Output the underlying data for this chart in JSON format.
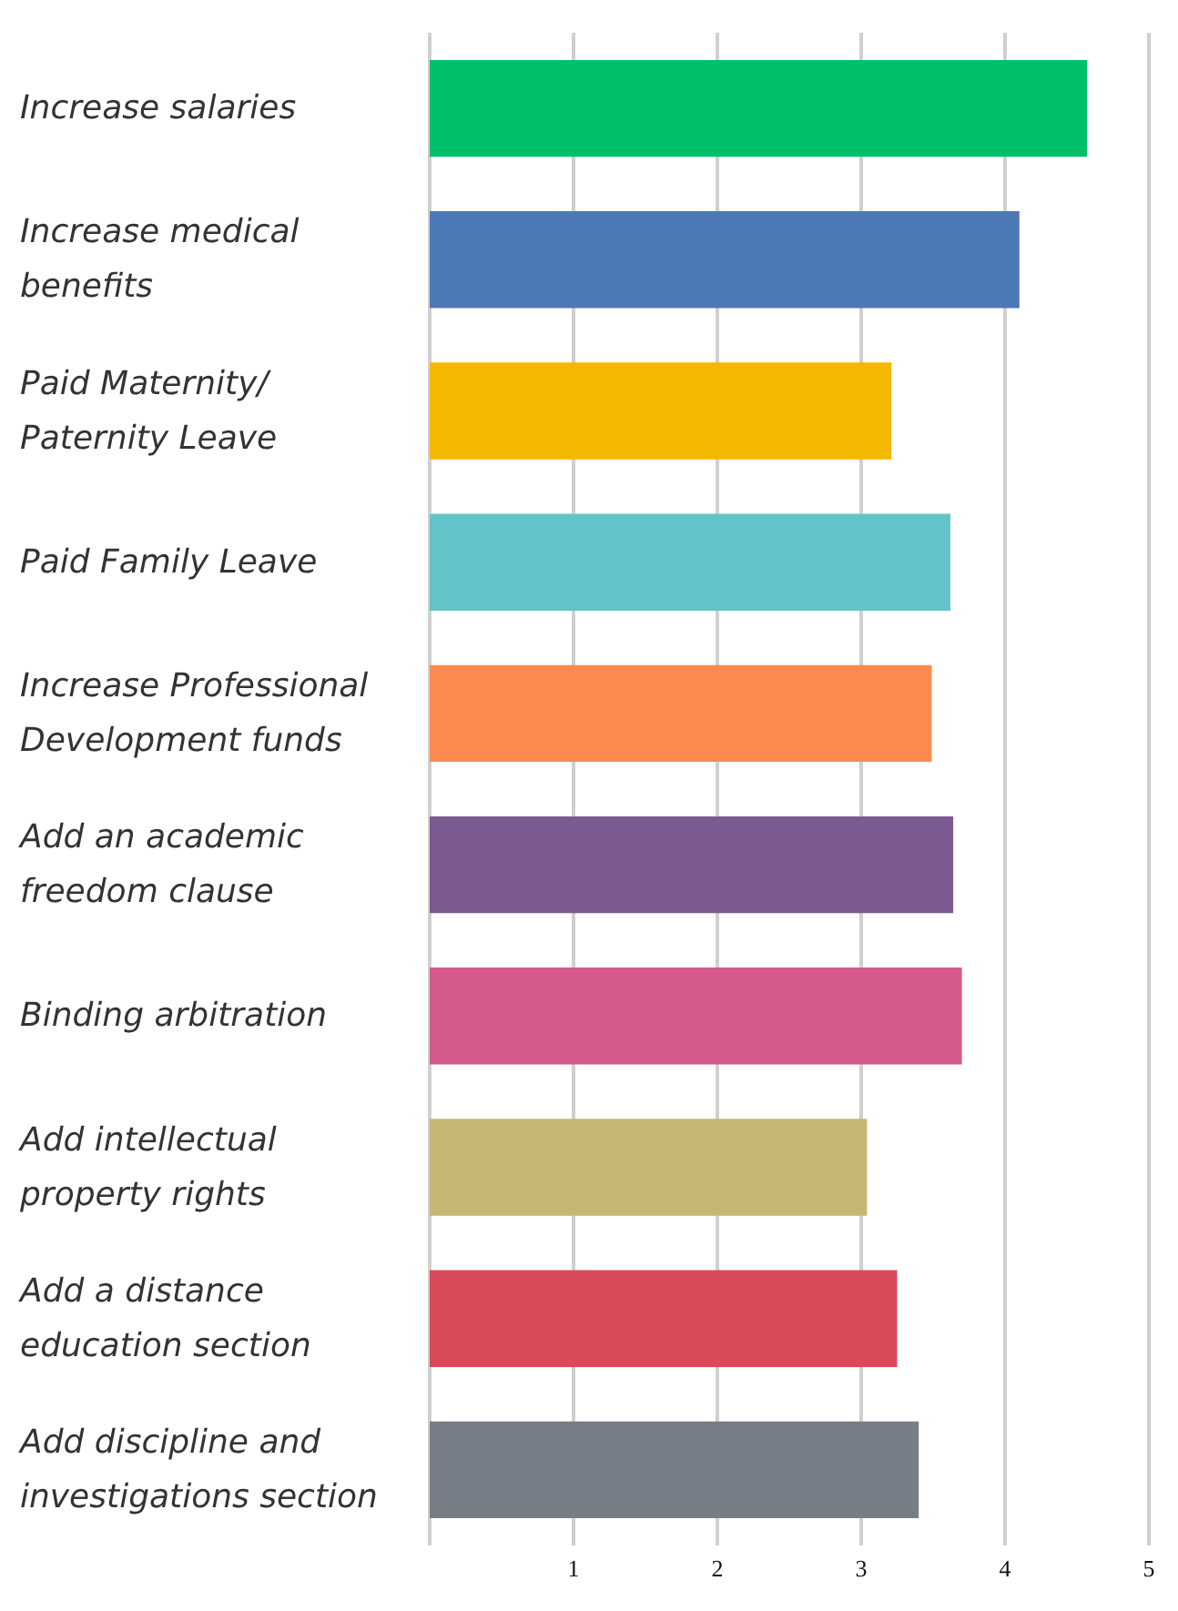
{
  "chart_data": {
    "type": "bar",
    "orientation": "horizontal",
    "categories": [
      "Increase salaries",
      "Increase medical benefits",
      "Paid Maternity/ Paternity Leave",
      "Paid Family Leave",
      "Increase Professional Development funds",
      "Add an academic freedom clause",
      "Binding arbitration",
      "Add intellectual property rights",
      "Add a distance education section",
      "Add discipline and investigations section"
    ],
    "values": [
      4.57,
      4.1,
      3.21,
      3.62,
      3.49,
      3.64,
      3.7,
      3.04,
      3.25,
      3.4
    ],
    "colors": [
      "#00c06b",
      "#4e79b8",
      "#f5b800",
      "#62c4c8",
      "#fd8a4e",
      "#7b5a91",
      "#d45a8b",
      "#c6b673",
      "#d94b5a",
      "#757e86"
    ],
    "xlim": [
      0,
      5
    ],
    "xticks": [
      1,
      2,
      3,
      4,
      5
    ],
    "grid": "x"
  }
}
